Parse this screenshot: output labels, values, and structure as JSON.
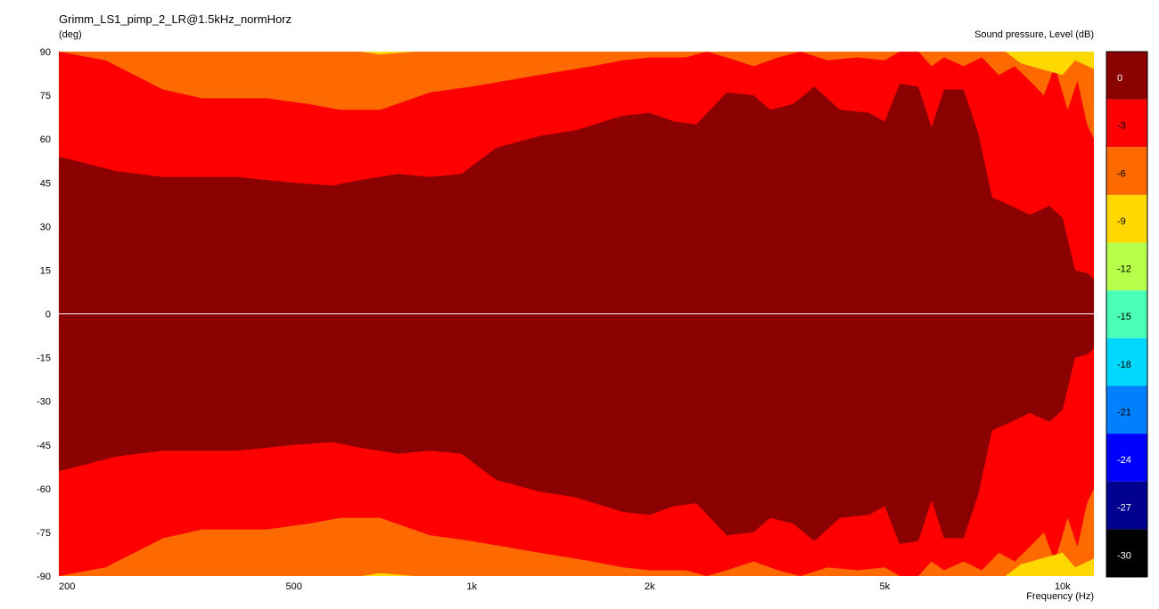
{
  "title": "Grimm_LS1_pimp_2_LR@1.5kHz_normHorz",
  "y_unit_label": "(deg)",
  "z_unit_label": "Sound pressure, Level  (dB)",
  "x_unit_label": "Frequency  (Hz)",
  "chart_data": {
    "type": "heatmap",
    "title": "Grimm_LS1_pimp_2_LR@1.5kHz_normHorz",
    "xlabel": "Frequency  (Hz)",
    "ylabel": "(deg)",
    "zlabel": "Sound pressure, Level  (dB)",
    "x_scale": "log",
    "xlim": [
      200,
      11300
    ],
    "ylim": [
      -90,
      90
    ],
    "x_ticks": [
      {
        "value": 200,
        "label": "200"
      },
      {
        "value": 500,
        "label": "500"
      },
      {
        "value": 1000,
        "label": "1k"
      },
      {
        "value": 2000,
        "label": "2k"
      },
      {
        "value": 5000,
        "label": "5k"
      },
      {
        "value": 10000,
        "label": "10k"
      }
    ],
    "y_ticks": [
      90,
      75,
      60,
      45,
      30,
      15,
      0,
      -15,
      -30,
      -45,
      -60,
      -75,
      -90
    ],
    "color_levels": [
      {
        "label": "0",
        "color": "#8b0000"
      },
      {
        "label": "-3",
        "color": "#ff0000"
      },
      {
        "label": "-6",
        "color": "#ff6a00"
      },
      {
        "label": "-9",
        "color": "#ffd800"
      },
      {
        "label": "-12",
        "color": "#b6ff4a"
      },
      {
        "label": "-15",
        "color": "#4affb6"
      },
      {
        "label": "-18",
        "color": "#00d8ff"
      },
      {
        "label": "-21",
        "color": "#0080ff"
      },
      {
        "label": "-24",
        "color": "#0000ff"
      },
      {
        "label": "-27",
        "color": "#000090"
      },
      {
        "label": "-30",
        "color": "#000000"
      }
    ],
    "symmetric_about_zero": true,
    "contour_0dB": [
      [
        200,
        54
      ],
      [
        250,
        49
      ],
      [
        300,
        47
      ],
      [
        400,
        47
      ],
      [
        500,
        45
      ],
      [
        580,
        44
      ],
      [
        650,
        46
      ],
      [
        750,
        48
      ],
      [
        850,
        47
      ],
      [
        960,
        48
      ],
      [
        1100,
        57
      ],
      [
        1300,
        61
      ],
      [
        1500,
        63
      ],
      [
        1800,
        68
      ],
      [
        2000,
        69
      ],
      [
        2200,
        66
      ],
      [
        2400,
        65
      ],
      [
        2700,
        76
      ],
      [
        3000,
        75
      ],
      [
        3200,
        70
      ],
      [
        3500,
        72
      ],
      [
        3800,
        78
      ],
      [
        4200,
        70
      ],
      [
        4700,
        69
      ],
      [
        5000,
        66
      ],
      [
        5300,
        79
      ],
      [
        5700,
        78
      ],
      [
        6000,
        64
      ],
      [
        6300,
        77
      ],
      [
        6800,
        77
      ],
      [
        7200,
        62
      ],
      [
        7600,
        40
      ],
      [
        8200,
        37
      ],
      [
        8800,
        34
      ],
      [
        9500,
        37
      ],
      [
        10000,
        33
      ],
      [
        10500,
        15
      ],
      [
        11000,
        14
      ],
      [
        11300,
        12
      ]
    ],
    "contour_minus3dB": [
      [
        200,
        90
      ],
      [
        240,
        87
      ],
      [
        300,
        77
      ],
      [
        350,
        74
      ],
      [
        450,
        74
      ],
      [
        530,
        72
      ],
      [
        600,
        70
      ],
      [
        700,
        70
      ],
      [
        850,
        76
      ],
      [
        1000,
        78
      ],
      [
        1300,
        82
      ],
      [
        1600,
        85
      ],
      [
        1800,
        87
      ],
      [
        2000,
        88
      ],
      [
        2300,
        88
      ],
      [
        2500,
        90
      ],
      [
        2700,
        88
      ],
      [
        3000,
        85
      ],
      [
        3300,
        88
      ],
      [
        3600,
        90
      ],
      [
        4000,
        87
      ],
      [
        4500,
        88
      ],
      [
        5000,
        87
      ],
      [
        5300,
        90
      ],
      [
        5700,
        90
      ],
      [
        6000,
        85
      ],
      [
        6300,
        88
      ],
      [
        6800,
        85
      ],
      [
        7300,
        88
      ],
      [
        7800,
        82
      ],
      [
        8300,
        85
      ],
      [
        8800,
        80
      ],
      [
        9300,
        75
      ],
      [
        9700,
        85
      ],
      [
        10200,
        70
      ],
      [
        10600,
        80
      ],
      [
        11000,
        65
      ],
      [
        11300,
        60
      ]
    ],
    "contour_minus6dB": [
      [
        650,
        90
      ],
      [
        700,
        89
      ],
      [
        800,
        90
      ],
      [
        8000,
        90
      ],
      [
        8500,
        86
      ],
      [
        9200,
        84
      ],
      [
        10000,
        82
      ],
      [
        10500,
        87
      ],
      [
        11300,
        84
      ]
    ]
  }
}
